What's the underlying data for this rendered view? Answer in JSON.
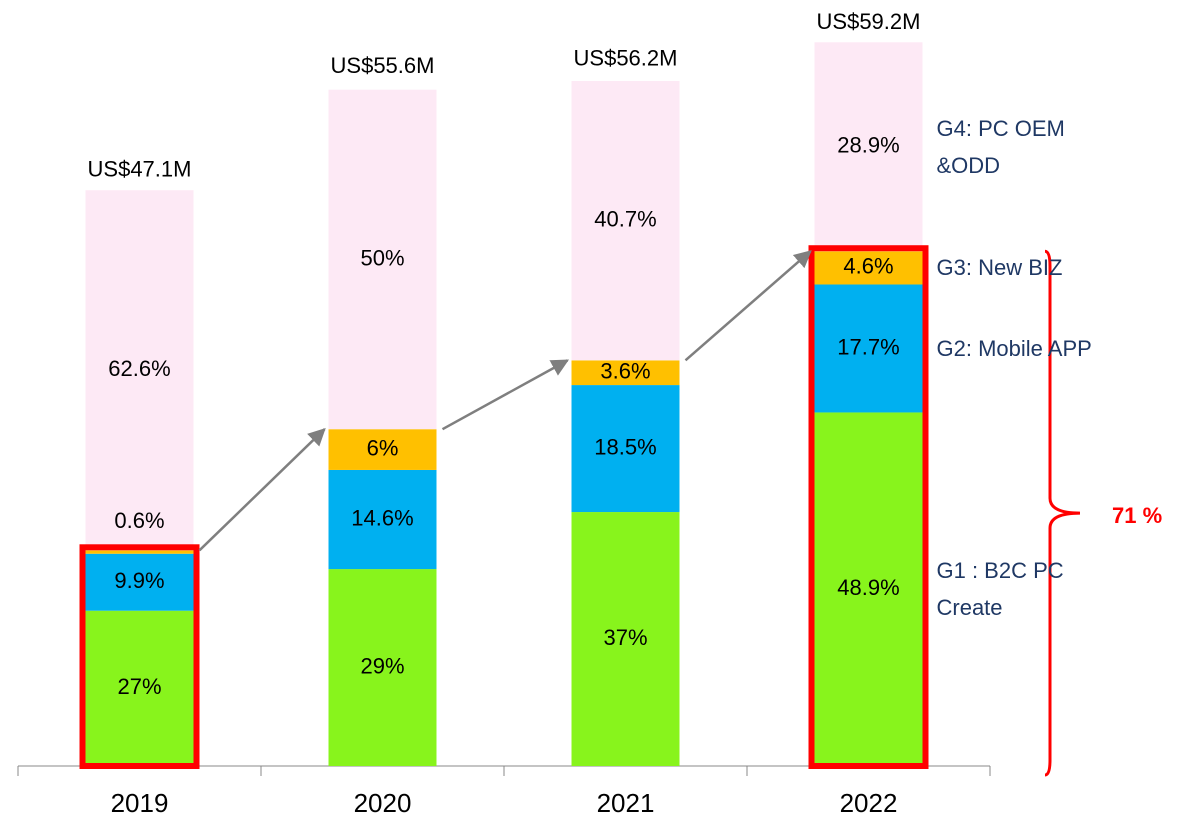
{
  "chart_data": {
    "type": "bar",
    "stacked": true,
    "categories": [
      "2019",
      "2020",
      "2021",
      "2022"
    ],
    "total": {
      "values": [
        47.1,
        55.6,
        56.2,
        59.2
      ],
      "value_labels": [
        "US$47.1M",
        "US$55.6M",
        "US$56.2M",
        "US$59.2M"
      ]
    },
    "series": [
      {
        "name": "G1 : B2C PC Create",
        "color": "#88f41c",
        "values": [
          27,
          29,
          37,
          48.9
        ],
        "value_labels": [
          "27%",
          "29%",
          "37%",
          "48.9%"
        ]
      },
      {
        "name": "G2: Mobile APP",
        "color": "#00b0f0",
        "values": [
          9.9,
          14.6,
          18.5,
          17.7
        ],
        "value_labels": [
          "9.9%",
          "14.6%",
          "18.5%",
          "17.7%"
        ]
      },
      {
        "name": "G3: New BIZ",
        "color": "#ffc000",
        "values": [
          0.6,
          6,
          3.6,
          4.6
        ],
        "value_labels": [
          "0.6%",
          "6%",
          "3.6%",
          "4.6%"
        ]
      },
      {
        "name": "G4: PC OEM &ODD",
        "color": "#fde9f5",
        "values": [
          62.6,
          50,
          40.7,
          28.9
        ],
        "value_labels": [
          "62.6%",
          "50%",
          "40.7%",
          "28.9%"
        ]
      }
    ],
    "annotation": "71 %"
  }
}
